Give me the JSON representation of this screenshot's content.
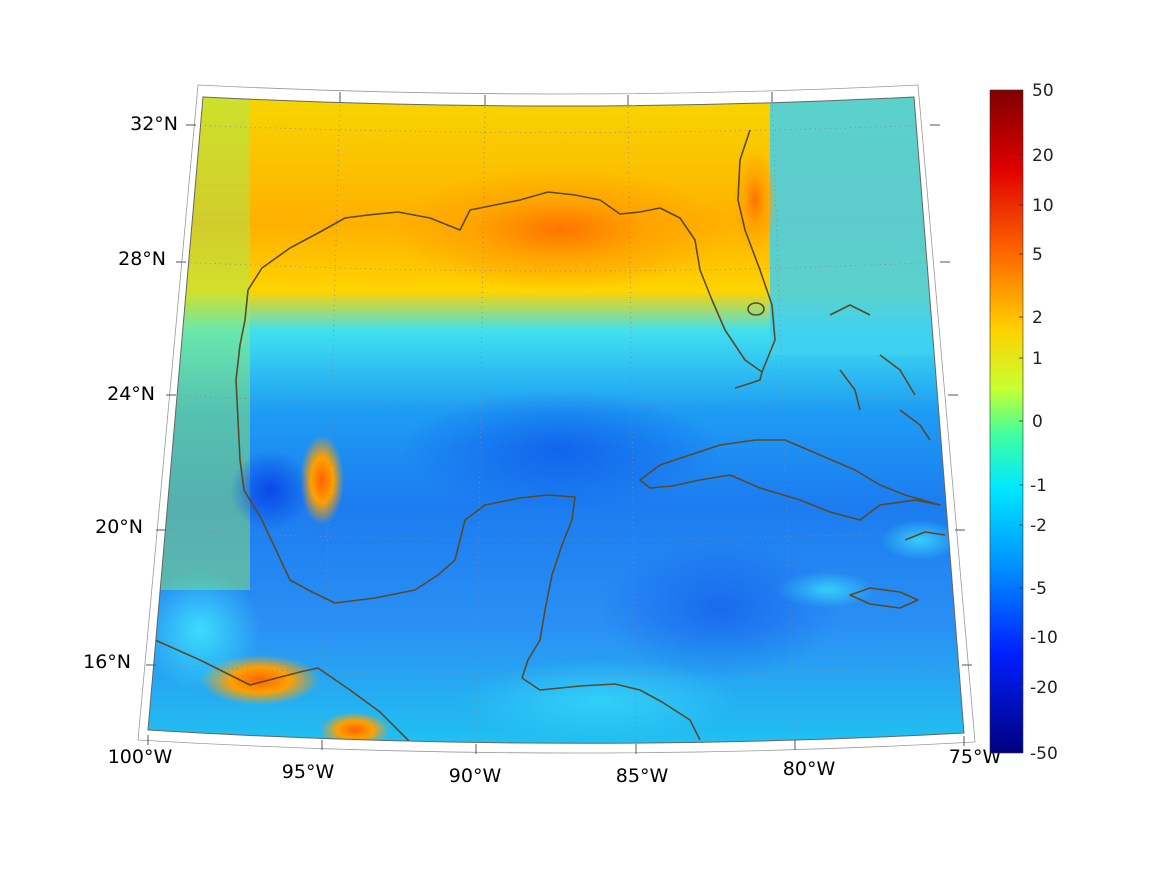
{
  "map": {
    "region": "Gulf of Mexico and Caribbean",
    "projection": "conic",
    "lon_range": [
      -100,
      -75
    ],
    "lat_range": [
      14,
      33
    ],
    "graticule": "dotted",
    "coastline_color": "#5a4a2a"
  },
  "lon_labels": [
    "100°W",
    "95°W",
    "90°W",
    "85°W",
    "80°W",
    "75°W"
  ],
  "lat_labels": [
    "32°N",
    "28°N",
    "24°N",
    "20°N",
    "16°N"
  ],
  "colorbar": {
    "colormap": "jet",
    "tick_labels": [
      "50",
      "20",
      "10",
      "5",
      "2",
      "1",
      "0",
      "-1",
      "-2",
      "-5",
      "-10",
      "-20",
      "-50"
    ]
  }
}
